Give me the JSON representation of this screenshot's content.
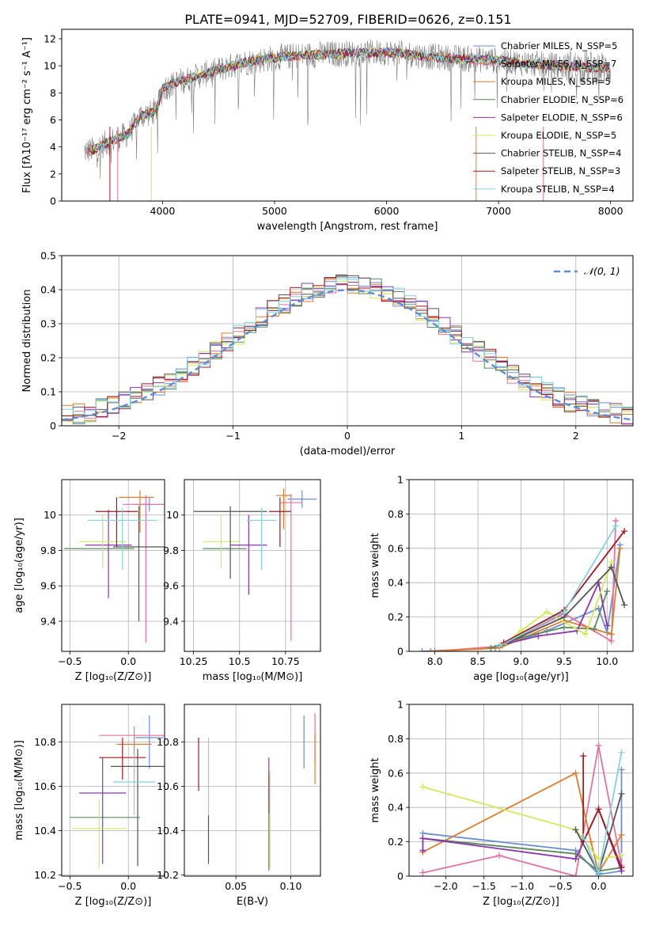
{
  "figure_title": "PLATE=0941, MJD=52709, FIBERID=0626, z=0.151",
  "colors": {
    "Chabrier MILES": "#6a8fd8",
    "Salpeter MILES": "#e8709e",
    "Kroupa MILES": "#e07d2a",
    "Chabrier ELODIE": "#5a8a5a",
    "Salpeter ELODIE": "#8a35b0",
    "Kroupa ELODIE": "#d2ea5a",
    "Chabrier STELIB": "#555555",
    "Salpeter STELIB": "#a8171e",
    "Kroupa STELIB": "#82d3de",
    "data": "#808080",
    "normal": "#5b8dd9"
  },
  "chart_data": [
    {
      "id": "spectrum",
      "type": "line",
      "title": "PLATE=0941, MJD=52709, FIBERID=0626, z=0.151",
      "xlabel": "wavelength [Angstrom, rest frame]",
      "ylabel": "Flux [fλ10⁻¹⁷ erg cm⁻² s⁻¹ A⁻¹]",
      "xlim": [
        3100,
        8200
      ],
      "ylim": [
        0,
        12.7
      ],
      "xticks": [
        4000,
        5000,
        6000,
        7000,
        8000
      ],
      "yticks": [
        0,
        2,
        4,
        6,
        8,
        10,
        12
      ],
      "legend_position": "top-right",
      "legend": [
        "Chabrier MILES, N_SSP=5",
        "Salpeter MILES, N_SSP=7",
        "Kroupa MILES, N_SSP=5",
        "Chabrier ELODIE, N_SSP=6",
        "Salpeter ELODIE, N_SSP=6",
        "Kroupa ELODIE, N_SSP=5",
        "Chabrier STELIB, N_SSP=4",
        "Salpeter STELIB, N_SSP=3",
        "Kroupa STELIB, N_SSP=4"
      ],
      "continuum": {
        "x": [
          3300,
          3400,
          3500,
          3600,
          3700,
          3800,
          3900,
          3950,
          4000,
          4100,
          4300,
          4500,
          4700,
          5000,
          5300,
          5600,
          6000,
          6500,
          7000,
          7500,
          8000
        ],
        "y": [
          3.7,
          3.8,
          4.3,
          4.6,
          5.0,
          6.3,
          6.5,
          6.8,
          8.3,
          8.7,
          9.2,
          9.7,
          10.2,
          10.6,
          10.8,
          10.9,
          11.0,
          10.6,
          10.4,
          10.0,
          9.8
        ]
      }
    },
    {
      "id": "residuals",
      "type": "line",
      "xlabel": "(data-model)/error",
      "ylabel": "Normed distribution",
      "xlim": [
        -2.5,
        2.5
      ],
      "ylim": [
        0,
        0.5
      ],
      "xticks": [
        -2,
        -1,
        0,
        1,
        2
      ],
      "xtick_labels": [
        "−2",
        "−1",
        "0",
        "1",
        "2"
      ],
      "yticks": [
        0,
        0.1,
        0.2,
        0.3,
        0.4,
        0.5
      ],
      "legend": [
        "𝒩(0, 1)"
      ],
      "legend_position": "top-right",
      "bin_width": 0.1
    },
    {
      "id": "age_vs_Z",
      "type": "scatter",
      "xlabel": "Z [log₁₀(Z/Z⊙)]",
      "ylabel": "age  [log₁₀(age/yr)]",
      "xlim": [
        -0.57,
        0.31
      ],
      "ylim": [
        9.23,
        10.2
      ],
      "xticks": [
        -0.5,
        0.0
      ],
      "xtick_labels": [
        "−0.5",
        "0.0"
      ],
      "yticks": [
        9.4,
        9.6,
        9.8,
        10.0
      ],
      "points": [
        {
          "model": "Chabrier MILES",
          "x": 0.18,
          "xerr": [
            0.12,
            0.12
          ],
          "y": 10.06,
          "yerr": [
            0.04,
            0.04
          ]
        },
        {
          "model": "Salpeter MILES",
          "x": 0.15,
          "xerr": [
            0.2,
            0.2
          ],
          "y": 10.06,
          "yerr": [
            0.78,
            0.05
          ]
        },
        {
          "model": "Kroupa MILES",
          "x": 0.1,
          "xerr": [
            0.18,
            0.12
          ],
          "y": 10.1,
          "yerr": [
            0.2,
            0.04
          ]
        },
        {
          "model": "Chabrier ELODIE",
          "x": -0.25,
          "xerr": [
            0.3,
            0.3
          ],
          "y": 9.81,
          "yerr": [
            0.0,
            0.0
          ]
        },
        {
          "model": "Salpeter ELODIE",
          "x": -0.17,
          "xerr": [
            0.2,
            0.2
          ],
          "y": 9.83,
          "yerr": [
            0.3,
            0.2
          ]
        },
        {
          "model": "Kroupa ELODIE",
          "x": -0.22,
          "xerr": [
            0.2,
            0.2
          ],
          "y": 9.85,
          "yerr": [
            0.15,
            0.15
          ]
        },
        {
          "model": "Chabrier STELIB",
          "x": 0.09,
          "xerr": [
            0.22,
            0.22
          ],
          "y": 9.82,
          "yerr": [
            0.42,
            0.23
          ]
        },
        {
          "model": "Salpeter STELIB",
          "x": -0.1,
          "xerr": [
            0.18,
            0.18
          ],
          "y": 10.02,
          "yerr": [
            0.2,
            0.08
          ]
        },
        {
          "model": "Kroupa STELIB",
          "x": -0.05,
          "xerr": [
            0.3,
            0.3
          ],
          "y": 9.97,
          "yerr": [
            0.28,
            0.07
          ]
        }
      ]
    },
    {
      "id": "age_vs_mass",
      "type": "scatter",
      "xlabel": "mass [log₁₀(M/M⊙)]",
      "ylabel": "",
      "xlim": [
        10.2,
        10.94
      ],
      "ylim": [
        9.23,
        10.2
      ],
      "xticks": [
        10.25,
        10.5,
        10.75
      ],
      "yticks": [
        9.4,
        9.6,
        9.8,
        10.0
      ],
      "points": [
        {
          "model": "Chabrier MILES",
          "x": 10.84,
          "xerr": [
            0.08,
            0.08
          ],
          "y": 10.09,
          "yerr": [
            0.05,
            0.05
          ]
        },
        {
          "model": "Salpeter MILES",
          "x": 10.78,
          "xerr": [
            0.06,
            0.06
          ],
          "y": 10.07,
          "yerr": [
            0.78,
            0.05
          ]
        },
        {
          "model": "Kroupa MILES",
          "x": 10.74,
          "xerr": [
            0.04,
            0.04
          ],
          "y": 10.11,
          "yerr": [
            0.19,
            0.04
          ]
        },
        {
          "model": "Chabrier ELODIE",
          "x": 10.42,
          "xerr": [
            0.12,
            0.12
          ],
          "y": 9.81,
          "yerr": [
            0.0,
            0.0
          ]
        },
        {
          "model": "Salpeter ELODIE",
          "x": 10.55,
          "xerr": [
            0.1,
            0.1
          ],
          "y": 9.83,
          "yerr": [
            0.28,
            0.17
          ]
        },
        {
          "model": "Kroupa ELODIE",
          "x": 10.4,
          "xerr": [
            0.1,
            0.1
          ],
          "y": 9.85,
          "yerr": [
            0.15,
            0.15
          ]
        },
        {
          "model": "Chabrier STELIB",
          "x": 10.45,
          "xerr": [
            0.2,
            0.2
          ],
          "y": 10.02,
          "yerr": [
            0.38,
            0.03
          ]
        },
        {
          "model": "Salpeter STELIB",
          "x": 10.72,
          "xerr": [
            0.06,
            0.06
          ],
          "y": 10.02,
          "yerr": [
            0.2,
            0.08
          ]
        },
        {
          "model": "Kroupa STELIB",
          "x": 10.62,
          "xerr": [
            0.08,
            0.08
          ],
          "y": 9.97,
          "yerr": [
            0.28,
            0.07
          ]
        }
      ]
    },
    {
      "id": "weight_vs_age",
      "type": "line",
      "xlabel": "age  [log₁₀(age/yr)]",
      "ylabel": "mass weight",
      "xlim": [
        7.7,
        10.3
      ],
      "ylim": [
        0,
        1.0
      ],
      "xticks": [
        8.0,
        8.5,
        9.0,
        9.5,
        10.0
      ],
      "xtick_labels": [
        "8.0",
        "8.5",
        "9.0",
        "9.5",
        "10.0"
      ],
      "yticks": [
        0.0,
        0.2,
        0.4,
        0.6,
        0.8,
        1.0
      ],
      "series": [
        {
          "model": "Chabrier MILES",
          "x": [
            7.85,
            8.7,
            9.3,
            9.9,
            10.0,
            10.15
          ],
          "y": [
            0.0,
            0.02,
            0.12,
            0.25,
            0.11,
            0.62
          ]
        },
        {
          "model": "Salpeter MILES",
          "x": [
            8.0,
            8.75,
            9.5,
            10.05,
            10.1
          ],
          "y": [
            0.0,
            0.03,
            0.22,
            0.06,
            0.76
          ]
        },
        {
          "model": "Kroupa MILES",
          "x": [
            7.95,
            8.75,
            9.5,
            10.05,
            10.15
          ],
          "y": [
            0.0,
            0.02,
            0.18,
            0.1,
            0.6
          ]
        },
        {
          "model": "Chabrier ELODIE",
          "x": [
            8.65,
            9.0,
            9.5,
            9.85,
            10.0
          ],
          "y": [
            0.02,
            0.08,
            0.14,
            0.13,
            0.35
          ]
        },
        {
          "model": "Salpeter ELODIE",
          "x": [
            8.8,
            9.2,
            9.65,
            9.9,
            10.0
          ],
          "y": [
            0.04,
            0.09,
            0.12,
            0.4,
            0.15
          ]
        },
        {
          "model": "Kroupa ELODIE",
          "x": [
            8.8,
            9.0,
            9.3,
            9.75,
            10.05
          ],
          "y": [
            0.04,
            0.12,
            0.23,
            0.1,
            0.52
          ]
        },
        {
          "model": "Chabrier STELIB",
          "x": [
            8.75,
            9.5,
            10.05,
            10.2
          ],
          "y": [
            0.03,
            0.2,
            0.49,
            0.27
          ]
        },
        {
          "model": "Salpeter STELIB",
          "x": [
            8.8,
            9.5,
            10.2
          ],
          "y": [
            0.05,
            0.24,
            0.7
          ]
        },
        {
          "model": "Kroupa STELIB",
          "x": [
            8.75,
            9.5,
            10.1
          ],
          "y": [
            0.03,
            0.23,
            0.73
          ]
        }
      ]
    },
    {
      "id": "mass_vs_Z",
      "type": "scatter",
      "xlabel": "Z [log₁₀(Z/Z⊙)]",
      "ylabel": "mass [log₁₀(M/M⊙)]",
      "xlim": [
        -0.57,
        0.31
      ],
      "ylim": [
        10.195,
        10.97
      ],
      "xticks": [
        -0.5,
        0.0
      ],
      "xtick_labels": [
        "−0.5",
        "0.0"
      ],
      "yticks": [
        10.2,
        10.4,
        10.6,
        10.8
      ],
      "points": [
        {
          "model": "Chabrier MILES",
          "x": 0.18,
          "xerr": [
            0.12,
            0.12
          ],
          "y": 10.82,
          "yerr": [
            0.14,
            0.1
          ]
        },
        {
          "model": "Salpeter MILES",
          "x": 0.05,
          "xerr": [
            0.3,
            0.3
          ],
          "y": 10.83,
          "yerr": [
            0.0,
            0.0
          ]
        },
        {
          "model": "Kroupa MILES",
          "x": 0.05,
          "xerr": [
            0.15,
            0.15
          ],
          "y": 10.79,
          "yerr": [
            0.18,
            0.08
          ]
        },
        {
          "model": "Chabrier ELODIE",
          "x": -0.2,
          "xerr": [
            0.3,
            0.3
          ],
          "y": 10.46,
          "yerr": [
            0.0,
            0.0
          ]
        },
        {
          "model": "Salpeter ELODIE",
          "x": -0.22,
          "xerr": [
            0.2,
            0.2
          ],
          "y": 10.57,
          "yerr": [
            0.32,
            0.16
          ]
        },
        {
          "model": "Kroupa ELODIE",
          "x": -0.25,
          "xerr": [
            0.23,
            0.23
          ],
          "y": 10.41,
          "yerr": [
            0.18,
            0.13
          ]
        },
        {
          "model": "Chabrier STELIB",
          "x": 0.08,
          "xerr": [
            0.23,
            0.23
          ],
          "y": 10.69,
          "yerr": [
            0.45,
            0.08
          ]
        },
        {
          "model": "Salpeter STELIB",
          "x": -0.05,
          "xerr": [
            0.2,
            0.2
          ],
          "y": 10.73,
          "yerr": [
            0.1,
            0.09
          ]
        },
        {
          "model": "Kroupa STELIB",
          "x": 0.05,
          "xerr": [
            0.18,
            0.18
          ],
          "y": 10.62,
          "yerr": [
            0.15,
            0.13
          ]
        }
      ]
    },
    {
      "id": "mass_vs_EBV",
      "type": "scatter",
      "xlabel": "E(B-V)",
      "ylabel": "",
      "xlim": [
        0.003,
        0.127
      ],
      "ylim": [
        10.195,
        10.97
      ],
      "xticks": [
        0.05,
        0.1
      ],
      "xtick_labels": [
        "0.05",
        "0.10"
      ],
      "yticks": [
        10.2,
        10.4,
        10.6,
        10.8
      ],
      "points": [
        {
          "model": "Chabrier MILES",
          "x": 0.112,
          "xerr": [
            0,
            0
          ],
          "y": 10.8,
          "yerr": [
            0.12,
            0.12
          ]
        },
        {
          "model": "Salpeter MILES",
          "x": 0.122,
          "xerr": [
            0,
            0
          ],
          "y": 10.8,
          "yerr": [
            0.1,
            0.13
          ]
        },
        {
          "model": "Kroupa MILES",
          "x": 0.122,
          "xerr": [
            0,
            0
          ],
          "y": 10.76,
          "yerr": [
            0.15,
            0.08
          ]
        },
        {
          "model": "Chabrier ELODIE",
          "x": 0.08,
          "xerr": [
            0,
            0
          ],
          "y": 10.47,
          "yerr": [
            0.25,
            0.18
          ]
        },
        {
          "model": "Salpeter ELODIE",
          "x": 0.08,
          "xerr": [
            0,
            0
          ],
          "y": 10.63,
          "yerr": [
            0.15,
            0.1
          ]
        },
        {
          "model": "Kroupa ELODIE",
          "x": 0.081,
          "xerr": [
            0,
            0
          ],
          "y": 10.45,
          "yerr": [
            0.22,
            0.22
          ]
        },
        {
          "model": "Chabrier STELIB",
          "x": 0.025,
          "xerr": [
            0,
            0
          ],
          "y": 10.36,
          "yerr": [
            0.11,
            0.11
          ]
        },
        {
          "model": "Salpeter STELIB",
          "x": 0.016,
          "xerr": [
            0,
            0
          ],
          "y": 10.7,
          "yerr": [
            0.12,
            0.12
          ]
        },
        {
          "model": "Kroupa STELIB",
          "x": 0.025,
          "xerr": [
            0,
            0
          ],
          "y": 10.65,
          "yerr": [
            0.18,
            0.17
          ]
        }
      ]
    },
    {
      "id": "weight_vs_Z",
      "type": "line",
      "xlabel": "Z [log₁₀(Z/Z⊙)]",
      "ylabel": "mass weight",
      "xlim": [
        -2.48,
        0.45
      ],
      "ylim": [
        0,
        1.0
      ],
      "xticks": [
        -2.0,
        -1.5,
        -1.0,
        -0.5,
        0.0
      ],
      "xtick_labels": [
        "−2.0",
        "−1.5",
        "−1.0",
        "−0.5",
        "0.0"
      ],
      "yticks": [
        0.0,
        0.2,
        0.4,
        0.6,
        0.8,
        1.0
      ],
      "series": [
        {
          "model": "Chabrier MILES",
          "x": [
            -2.3,
            -0.3,
            0.0,
            0.3,
            0.3
          ],
          "y": [
            0.25,
            0.15,
            0.01,
            0.03,
            0.62
          ]
        },
        {
          "model": "Salpeter MILES",
          "x": [
            -2.3,
            -1.3,
            -0.3,
            0.0,
            0.3
          ],
          "y": [
            0.02,
            0.12,
            0.0,
            0.76,
            0.06
          ]
        },
        {
          "model": "Kroupa MILES",
          "x": [
            -2.3,
            -0.3,
            -0.1,
            0.0,
            0.3
          ],
          "y": [
            0.14,
            0.6,
            0.2,
            0.02,
            0.24
          ]
        },
        {
          "model": "Chabrier ELODIE",
          "x": [
            -2.3,
            -0.3,
            0.0,
            0.3
          ],
          "y": [
            0.22,
            0.13,
            0.03,
            0.05
          ]
        },
        {
          "model": "Salpeter ELODIE",
          "x": [
            -2.3,
            -2.3,
            -0.3,
            0.0,
            0.3
          ],
          "y": [
            0.15,
            0.22,
            0.1,
            0.39,
            0.03
          ]
        },
        {
          "model": "Kroupa ELODIE",
          "x": [
            -2.3,
            -0.3,
            0.0,
            0.3
          ],
          "y": [
            0.52,
            0.27,
            0.1,
            0.12
          ]
        },
        {
          "model": "Chabrier STELIB",
          "x": [
            -0.3,
            0.0,
            0.3
          ],
          "y": [
            0.27,
            0.02,
            0.48
          ]
        },
        {
          "model": "Salpeter STELIB",
          "x": [
            -0.2,
            -0.2,
            0.0,
            0.3
          ],
          "y": [
            0.7,
            0.2,
            0.39,
            0.05
          ]
        },
        {
          "model": "Kroupa STELIB",
          "x": [
            -0.2,
            0.0,
            0.3
          ],
          "y": [
            0.23,
            0.02,
            0.72
          ]
        }
      ]
    }
  ]
}
